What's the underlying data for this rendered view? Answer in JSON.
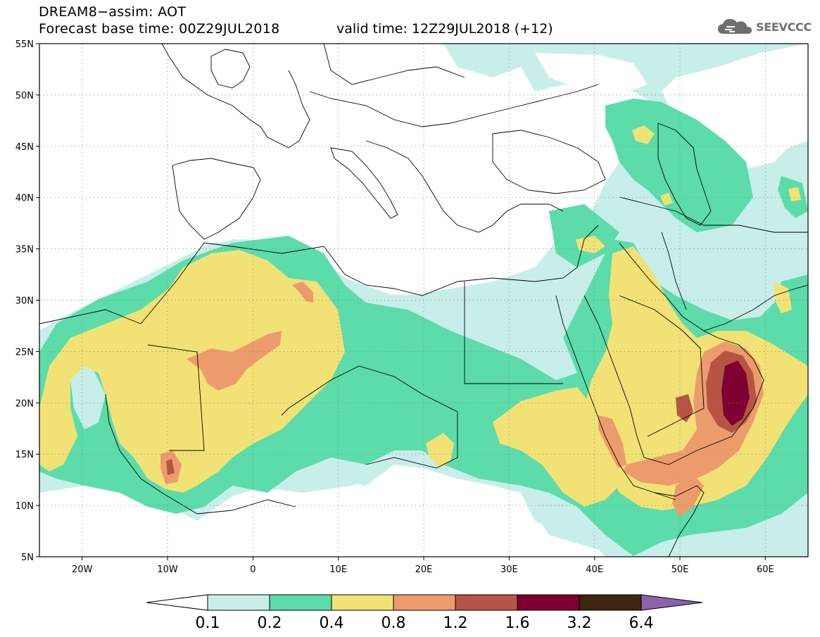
{
  "header": {
    "title": "DREAM8−assim: AOT",
    "base_time": "Forecast base time: 00Z29JUL2018",
    "valid_time": "valid time: 12Z29JUL2018 (+12)"
  },
  "brand": {
    "name": "SEEVCCC",
    "icon": "cloud-icon"
  },
  "map": {
    "variable": "AOT",
    "lat_range": [
      5,
      55
    ],
    "lon_range": [
      -25,
      65
    ],
    "lat_labels": [
      "55N",
      "50N",
      "45N",
      "40N",
      "35N",
      "30N",
      "25N",
      "20N",
      "15N",
      "10N",
      "5N"
    ],
    "lon_labels": [
      "20W",
      "10W",
      "0",
      "10E",
      "20E",
      "30E",
      "40E",
      "50E",
      "60E"
    ],
    "gridlines": "dotted",
    "colors": {
      "c01": "#c8eee9",
      "c02": "#5bdcaa",
      "c04": "#f2e276",
      "c08": "#ec9c6c",
      "c12": "#b65544",
      "c16": "#7f0032",
      "c32": "#3d2510",
      "c64": "#8c62aa",
      "land": "#ffffff",
      "border": "#000000"
    }
  },
  "legend": {
    "labels": [
      "0.1",
      "0.2",
      "0.4",
      "0.8",
      "1.2",
      "1.6",
      "3.2",
      "6.4"
    ],
    "colors": [
      "#ffffff",
      "#c8eee9",
      "#5bdcaa",
      "#f2e276",
      "#ec9c6c",
      "#b65544",
      "#7f0032",
      "#3d2510",
      "#8c62aa"
    ]
  }
}
